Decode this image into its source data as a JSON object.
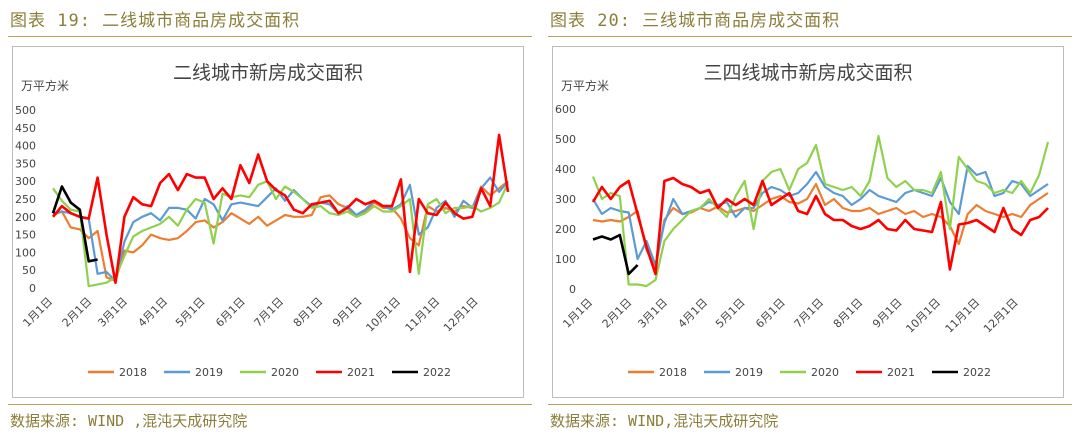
{
  "left": {
    "figure_title": "图表 19: 二线城市商品房成交面积",
    "source": "数据来源: WIND ,混沌天成研究院"
  },
  "right": {
    "figure_title": "图表 20: 三线城市商品房成交面积",
    "source": "数据来源: WIND,混沌天成研究院"
  },
  "colors": {
    "2018": "#ed7d31",
    "2019": "#5b9bd5",
    "2020": "#8fd14f",
    "2021": "#ff0000",
    "2022": "#000000"
  },
  "chart_data": [
    {
      "type": "line",
      "title": "二线城市新房成交面积",
      "ylabel": "万平方米",
      "ylim": [
        0,
        500
      ],
      "yticks": [
        0,
        50,
        100,
        150,
        200,
        250,
        300,
        350,
        400,
        450,
        500
      ],
      "xlim": [
        1,
        52
      ],
      "xticks": [
        {
          "label": "1月1日",
          "week": 1
        },
        {
          "label": "2月1日",
          "week": 5.4
        },
        {
          "label": "3月1日",
          "week": 9.4
        },
        {
          "label": "4月1日",
          "week": 13.9
        },
        {
          "label": "5月1日",
          "week": 18.1
        },
        {
          "label": "6月1日",
          "week": 22.6
        },
        {
          "label": "7月1日",
          "week": 26.9
        },
        {
          "label": "8月1日",
          "week": 31.3
        },
        {
          "label": "9月1日",
          "week": 35.7
        },
        {
          "label": "10月1日",
          "week": 40
        },
        {
          "label": "11月1日",
          "week": 44.4
        },
        {
          "label": "12月1日",
          "week": 48.7
        }
      ],
      "grid": false,
      "legend": "bottom",
      "series": [
        {
          "name": "2018",
          "values": [
            205,
            215,
            170,
            165,
            140,
            160,
            30,
            20,
            105,
            100,
            120,
            150,
            140,
            135,
            140,
            160,
            185,
            190,
            170,
            185,
            210,
            195,
            180,
            200,
            175,
            190,
            205,
            200,
            200,
            205,
            255,
            260,
            235,
            225,
            200,
            215,
            240,
            225,
            225,
            195,
            140,
            120,
            230,
            215,
            225,
            215,
            230,
            225,
            285,
            260,
            280,
            300
          ]
        },
        {
          "name": "2019",
          "values": [
            210,
            215,
            210,
            200,
            195,
            40,
            45,
            20,
            130,
            185,
            200,
            210,
            190,
            225,
            225,
            220,
            195,
            250,
            235,
            190,
            235,
            240,
            235,
            230,
            255,
            280,
            245,
            275,
            250,
            230,
            240,
            235,
            210,
            230,
            205,
            220,
            245,
            230,
            220,
            235,
            290,
            150,
            170,
            225,
            245,
            200,
            245,
            225,
            280,
            310,
            270,
            300
          ]
        },
        {
          "name": "2020",
          "values": [
            280,
            245,
            220,
            215,
            5,
            10,
            15,
            30,
            90,
            145,
            160,
            170,
            180,
            200,
            175,
            220,
            250,
            240,
            125,
            265,
            255,
            260,
            255,
            290,
            300,
            250,
            285,
            270,
            250,
            225,
            230,
            210,
            205,
            215,
            200,
            210,
            230,
            215,
            215,
            230,
            250,
            40,
            235,
            250,
            210,
            225,
            225,
            230,
            215,
            225,
            240,
            295
          ]
        },
        {
          "name": "2021",
          "values": [
            200,
            230,
            210,
            200,
            195,
            310,
            150,
            15,
            200,
            255,
            235,
            230,
            295,
            320,
            275,
            320,
            310,
            310,
            250,
            280,
            250,
            345,
            295,
            375,
            300,
            275,
            260,
            220,
            210,
            235,
            240,
            245,
            210,
            225,
            250,
            235,
            245,
            230,
            230,
            305,
            45,
            250,
            210,
            205,
            240,
            210,
            195,
            200,
            280,
            230,
            430,
            270
          ]
        },
        {
          "name": "2022",
          "values": [
            210,
            285,
            240,
            220,
            75,
            80
          ]
        }
      ]
    },
    {
      "type": "line",
      "title": "三四线城市新房成交面积",
      "ylabel": "万平方米",
      "ylim": [
        0,
        600
      ],
      "yticks": [
        0,
        100,
        200,
        300,
        400,
        500,
        600
      ],
      "xlim": [
        1,
        52
      ],
      "xticks": [
        {
          "label": "1月1日",
          "week": 1
        },
        {
          "label": "2月1日",
          "week": 5.4
        },
        {
          "label": "3月1日",
          "week": 9.4
        },
        {
          "label": "4月1日",
          "week": 13.9
        },
        {
          "label": "5月1日",
          "week": 18.1
        },
        {
          "label": "6月1日",
          "week": 22.6
        },
        {
          "label": "7月1日",
          "week": 26.9
        },
        {
          "label": "8月1日",
          "week": 31.3
        },
        {
          "label": "9月1日",
          "week": 35.7
        },
        {
          "label": "10月1日",
          "week": 40
        },
        {
          "label": "11月1日",
          "week": 44.4
        },
        {
          "label": "12月1日",
          "week": 48.7
        }
      ],
      "grid": false,
      "legend": "bottom",
      "series": [
        {
          "name": "2018",
          "values": [
            230,
            225,
            230,
            225,
            240,
            260,
            130,
            70,
            230,
            270,
            250,
            255,
            270,
            260,
            275,
            255,
            260,
            270,
            260,
            280,
            300,
            310,
            290,
            285,
            300,
            350,
            280,
            300,
            270,
            260,
            260,
            270,
            250,
            260,
            270,
            250,
            260,
            240,
            250,
            240,
            210,
            150,
            250,
            280,
            260,
            250,
            240,
            250,
            240,
            280,
            300,
            320
          ]
        },
        {
          "name": "2019",
          "values": [
            300,
            250,
            270,
            260,
            255,
            100,
            160,
            80,
            220,
            300,
            250,
            260,
            270,
            290,
            280,
            290,
            240,
            270,
            270,
            320,
            340,
            330,
            310,
            320,
            350,
            390,
            340,
            320,
            310,
            280,
            300,
            330,
            310,
            300,
            290,
            320,
            330,
            320,
            310,
            370,
            290,
            250,
            410,
            380,
            390,
            310,
            320,
            360,
            350,
            310,
            330,
            350
          ]
        },
        {
          "name": "2020",
          "values": [
            375,
            300,
            320,
            310,
            15,
            15,
            10,
            30,
            160,
            200,
            230,
            260,
            270,
            300,
            270,
            240,
            310,
            360,
            200,
            360,
            390,
            400,
            330,
            400,
            420,
            480,
            350,
            340,
            330,
            340,
            310,
            360,
            510,
            370,
            340,
            360,
            330,
            330,
            320,
            390,
            200,
            440,
            400,
            360,
            350,
            320,
            330,
            320,
            360,
            320,
            380,
            490
          ]
        },
        {
          "name": "2021",
          "values": [
            290,
            340,
            300,
            340,
            360,
            250,
            140,
            50,
            360,
            370,
            350,
            340,
            320,
            330,
            270,
            300,
            280,
            300,
            280,
            360,
            280,
            300,
            320,
            260,
            250,
            310,
            250,
            230,
            230,
            210,
            200,
            210,
            230,
            200,
            195,
            230,
            200,
            195,
            190,
            290,
            65,
            215,
            220,
            230,
            210,
            190,
            270,
            200,
            180,
            230,
            240,
            270
          ]
        },
        {
          "name": "2022",
          "values": [
            165,
            175,
            165,
            180,
            50,
            80
          ]
        }
      ]
    }
  ]
}
